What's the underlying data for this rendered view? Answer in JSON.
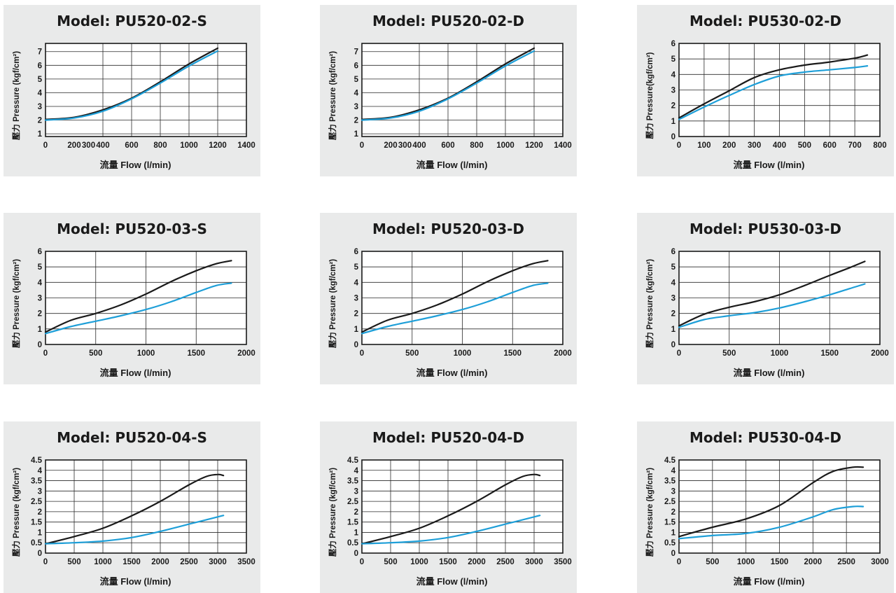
{
  "chart_data": [
    {
      "type": "line",
      "title": "Model: PU520-02-S",
      "xlabel": "流量 Flow (l/min)",
      "ylabel": "壓力 Pressure (kgf/cm²)",
      "xlim": [
        0,
        1400
      ],
      "ylim": [
        0.8,
        7.6
      ],
      "xticks": [
        0,
        200,
        300,
        400,
        600,
        800,
        1000,
        1200,
        1400
      ],
      "xgrid": [
        0,
        400,
        600,
        800,
        1000,
        1200,
        1400
      ],
      "yticks": [
        1,
        2,
        3,
        4,
        5,
        6,
        7
      ],
      "ygrid": [
        1,
        2,
        3,
        4,
        5,
        6,
        7
      ],
      "grid": true,
      "series": [
        {
          "color": "#1a1a1a",
          "x": [
            0,
            200,
            400,
            600,
            800,
            1000,
            1200
          ],
          "values": [
            2.05,
            2.2,
            2.75,
            3.6,
            4.8,
            6.1,
            7.25
          ]
        },
        {
          "color": "#1e9fd8",
          "x": [
            0,
            200,
            400,
            600,
            800,
            1000,
            1200
          ],
          "values": [
            2.0,
            2.15,
            2.65,
            3.55,
            4.7,
            5.95,
            7.05
          ]
        }
      ]
    },
    {
      "type": "line",
      "title": "Model: PU520-02-D",
      "xlabel": "流量 Flow (l/min)",
      "ylabel": "壓力 Pressure (kgf/cm²)",
      "xlim": [
        0,
        1400
      ],
      "ylim": [
        0.8,
        7.6
      ],
      "xticks": [
        0,
        200,
        300,
        400,
        600,
        800,
        1000,
        1200,
        1400
      ],
      "xgrid": [
        0,
        400,
        600,
        800,
        1000,
        1200,
        1400
      ],
      "yticks": [
        1,
        2,
        3,
        4,
        5,
        6,
        7
      ],
      "ygrid": [
        1,
        2,
        3,
        4,
        5,
        6,
        7
      ],
      "grid": true,
      "series": [
        {
          "color": "#1a1a1a",
          "x": [
            0,
            200,
            400,
            600,
            800,
            1000,
            1200
          ],
          "values": [
            2.05,
            2.2,
            2.75,
            3.6,
            4.8,
            6.1,
            7.25
          ]
        },
        {
          "color": "#1e9fd8",
          "x": [
            0,
            200,
            400,
            600,
            800,
            1000,
            1200
          ],
          "values": [
            2.0,
            2.15,
            2.65,
            3.55,
            4.7,
            5.95,
            7.05
          ]
        }
      ]
    },
    {
      "type": "line",
      "title": "Model: PU530-02-D",
      "xlabel": "流量 Flow (l/min)",
      "ylabel": "壓力 Pressure(kgf/cm²)",
      "xlim": [
        0,
        800
      ],
      "ylim": [
        0,
        6
      ],
      "xticks": [
        0,
        100,
        200,
        300,
        400,
        500,
        600,
        700,
        800
      ],
      "xgrid": [
        0,
        100,
        200,
        300,
        400,
        500,
        600,
        700,
        800
      ],
      "yticks": [
        0,
        1,
        2,
        3,
        4,
        5,
        6
      ],
      "ygrid": [
        0,
        1,
        2,
        3,
        4,
        5,
        6
      ],
      "grid": true,
      "series": [
        {
          "color": "#1a1a1a",
          "x": [
            0,
            100,
            200,
            300,
            400,
            500,
            600,
            700,
            750
          ],
          "values": [
            1.2,
            2.1,
            2.95,
            3.8,
            4.3,
            4.6,
            4.8,
            5.05,
            5.25
          ]
        },
        {
          "color": "#1e9fd8",
          "x": [
            0,
            100,
            200,
            300,
            400,
            500,
            600,
            700,
            750
          ],
          "values": [
            1.1,
            1.9,
            2.65,
            3.35,
            3.9,
            4.15,
            4.3,
            4.45,
            4.55
          ]
        }
      ]
    },
    {
      "type": "line",
      "title": "Model: PU520-03-S",
      "xlabel": "流量 Flow (l/min)",
      "ylabel": "壓力 Pressure (kgf/cm²)",
      "xlim": [
        0,
        2000
      ],
      "ylim": [
        0,
        6
      ],
      "xticks": [
        0,
        500,
        1000,
        1500,
        2000
      ],
      "xgrid": [
        0,
        500,
        1000,
        1500,
        2000
      ],
      "yticks": [
        0,
        1,
        2,
        3,
        4,
        5,
        6
      ],
      "ygrid": [
        0,
        1,
        2,
        3,
        4,
        5,
        6
      ],
      "grid": true,
      "series": [
        {
          "color": "#1a1a1a",
          "x": [
            0,
            250,
            500,
            750,
            1000,
            1250,
            1500,
            1700,
            1850
          ],
          "values": [
            0.8,
            1.55,
            2.0,
            2.55,
            3.25,
            4.05,
            4.75,
            5.2,
            5.4
          ]
        },
        {
          "color": "#1e9fd8",
          "x": [
            0,
            250,
            500,
            750,
            1000,
            1250,
            1500,
            1700,
            1850
          ],
          "values": [
            0.7,
            1.15,
            1.5,
            1.85,
            2.25,
            2.75,
            3.35,
            3.8,
            3.95
          ]
        }
      ]
    },
    {
      "type": "line",
      "title": "Model: PU520-03-D",
      "xlabel": "流量 Flow (l/min)",
      "ylabel": "壓力 Pressure (kgf/cm²)",
      "xlim": [
        0,
        2000
      ],
      "ylim": [
        0,
        6
      ],
      "xticks": [
        0,
        500,
        1000,
        1500,
        2000
      ],
      "xgrid": [
        0,
        500,
        1000,
        1500,
        2000
      ],
      "yticks": [
        0,
        1,
        2,
        3,
        4,
        5,
        6
      ],
      "ygrid": [
        0,
        1,
        2,
        3,
        4,
        5,
        6
      ],
      "grid": true,
      "series": [
        {
          "color": "#1a1a1a",
          "x": [
            0,
            250,
            500,
            750,
            1000,
            1250,
            1500,
            1700,
            1850
          ],
          "values": [
            0.8,
            1.55,
            2.0,
            2.55,
            3.25,
            4.05,
            4.75,
            5.2,
            5.4
          ]
        },
        {
          "color": "#1e9fd8",
          "x": [
            0,
            250,
            500,
            750,
            1000,
            1250,
            1500,
            1700,
            1850
          ],
          "values": [
            0.7,
            1.15,
            1.5,
            1.85,
            2.25,
            2.75,
            3.35,
            3.8,
            3.95
          ]
        }
      ]
    },
    {
      "type": "line",
      "title": "Model: PU530-03-D",
      "xlabel": "流量 Flow (l/min)",
      "ylabel": "壓力 Pressure (kgf/cm²)",
      "xlim": [
        0,
        2000
      ],
      "ylim": [
        0,
        6
      ],
      "xticks": [
        0,
        500,
        1000,
        1500,
        2000
      ],
      "xgrid": [
        0,
        500,
        1000,
        1500,
        2000
      ],
      "yticks": [
        0,
        1,
        2,
        3,
        4,
        5,
        6
      ],
      "ygrid": [
        0,
        1,
        2,
        3,
        4,
        5,
        6
      ],
      "grid": true,
      "series": [
        {
          "color": "#1a1a1a",
          "x": [
            0,
            250,
            500,
            750,
            1000,
            1250,
            1500,
            1700,
            1850
          ],
          "values": [
            1.2,
            1.95,
            2.4,
            2.75,
            3.2,
            3.8,
            4.45,
            4.95,
            5.35
          ]
        },
        {
          "color": "#1e9fd8",
          "x": [
            0,
            250,
            500,
            750,
            1000,
            1250,
            1500,
            1700,
            1850
          ],
          "values": [
            1.1,
            1.6,
            1.85,
            2.05,
            2.35,
            2.75,
            3.2,
            3.6,
            3.9
          ]
        }
      ]
    },
    {
      "type": "line",
      "title": "Model: PU520-04-S",
      "xlabel": "流量 Flow (l/min)",
      "ylabel": "壓力 Pressure (kgf/cm²)",
      "xlim": [
        0,
        3500
      ],
      "ylim": [
        0,
        4.5
      ],
      "xticks": [
        0,
        500,
        1000,
        1500,
        2000,
        2500,
        3000,
        3500
      ],
      "xgrid": [
        0,
        500,
        1000,
        1500,
        2000,
        2500,
        3000,
        3500
      ],
      "yticks": [
        0,
        0.5,
        1,
        1.5,
        2,
        2.5,
        3,
        3.5,
        4,
        4.5
      ],
      "ygrid": [
        0,
        0.5,
        1,
        1.5,
        2,
        2.5,
        3,
        3.5,
        4,
        4.5
      ],
      "grid": true,
      "series": [
        {
          "color": "#1a1a1a",
          "x": [
            0,
            500,
            1000,
            1500,
            2000,
            2500,
            2800,
            3000,
            3100
          ],
          "values": [
            0.45,
            0.8,
            1.2,
            1.8,
            2.5,
            3.3,
            3.7,
            3.8,
            3.75
          ]
        },
        {
          "color": "#1e9fd8",
          "x": [
            0,
            500,
            1000,
            1500,
            2000,
            2500,
            3000,
            3100
          ],
          "values": [
            0.45,
            0.5,
            0.58,
            0.75,
            1.05,
            1.4,
            1.75,
            1.82
          ]
        }
      ]
    },
    {
      "type": "line",
      "title": "Model: PU520-04-D",
      "xlabel": "流量 Flow (l/min)",
      "ylabel": "壓力 Pressure (kgf/cm²)",
      "xlim": [
        0,
        3500
      ],
      "ylim": [
        0,
        4.5
      ],
      "xticks": [
        0,
        500,
        1000,
        1500,
        2000,
        2500,
        3000,
        3500
      ],
      "xgrid": [
        0,
        500,
        1000,
        1500,
        2000,
        2500,
        3000,
        3500
      ],
      "yticks": [
        0,
        0.5,
        1,
        1.5,
        2,
        2.5,
        3,
        3.5,
        4,
        4.5
      ],
      "ygrid": [
        0,
        0.5,
        1,
        1.5,
        2,
        2.5,
        3,
        3.5,
        4,
        4.5
      ],
      "grid": true,
      "series": [
        {
          "color": "#1a1a1a",
          "x": [
            0,
            500,
            1000,
            1500,
            2000,
            2500,
            2800,
            3000,
            3100
          ],
          "values": [
            0.45,
            0.8,
            1.2,
            1.8,
            2.5,
            3.3,
            3.7,
            3.8,
            3.75
          ]
        },
        {
          "color": "#1e9fd8",
          "x": [
            0,
            500,
            1000,
            1500,
            2000,
            2500,
            3000,
            3100
          ],
          "values": [
            0.45,
            0.5,
            0.58,
            0.75,
            1.05,
            1.4,
            1.75,
            1.82
          ]
        }
      ]
    },
    {
      "type": "line",
      "title": "Model: PU530-04-D",
      "xlabel": "流量 Flow (l/min)",
      "ylabel": "壓力 Pressure (kgf/cm²)",
      "xlim": [
        0,
        3000
      ],
      "ylim": [
        0,
        4.5
      ],
      "xticks": [
        0,
        500,
        1000,
        1500,
        2000,
        2500,
        3000
      ],
      "xgrid": [
        0,
        500,
        1000,
        1500,
        2000,
        2500,
        3000
      ],
      "yticks": [
        0,
        0.5,
        1,
        1.5,
        2,
        2.5,
        3,
        3.5,
        4,
        4.5
      ],
      "ygrid": [
        0,
        0.5,
        1,
        1.5,
        2,
        2.5,
        3,
        3.5,
        4,
        4.5
      ],
      "grid": true,
      "series": [
        {
          "color": "#1a1a1a",
          "x": [
            0,
            500,
            1000,
            1500,
            2000,
            2300,
            2600,
            2750
          ],
          "values": [
            0.8,
            1.25,
            1.65,
            2.3,
            3.4,
            3.95,
            4.15,
            4.15
          ]
        },
        {
          "color": "#1e9fd8",
          "x": [
            0,
            500,
            1000,
            1500,
            2000,
            2300,
            2600,
            2750
          ],
          "values": [
            0.7,
            0.85,
            0.95,
            1.25,
            1.75,
            2.1,
            2.25,
            2.25
          ]
        }
      ]
    }
  ]
}
